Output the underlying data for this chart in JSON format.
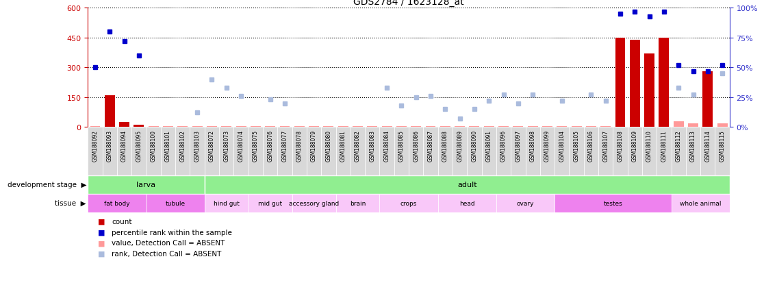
{
  "title": "GDS2784 / 1623128_at",
  "samples": [
    "GSM188092",
    "GSM188093",
    "GSM188094",
    "GSM188095",
    "GSM188100",
    "GSM188101",
    "GSM188102",
    "GSM188103",
    "GSM188072",
    "GSM188073",
    "GSM188074",
    "GSM188075",
    "GSM188076",
    "GSM188077",
    "GSM188078",
    "GSM188079",
    "GSM188080",
    "GSM188081",
    "GSM188082",
    "GSM188083",
    "GSM188084",
    "GSM188085",
    "GSM188086",
    "GSM188087",
    "GSM188088",
    "GSM188089",
    "GSM188090",
    "GSM188091",
    "GSM188096",
    "GSM188097",
    "GSM188098",
    "GSM188099",
    "GSM188104",
    "GSM188105",
    "GSM188106",
    "GSM188107",
    "GSM188108",
    "GSM188109",
    "GSM188110",
    "GSM188111",
    "GSM188112",
    "GSM188113",
    "GSM188114",
    "GSM188115"
  ],
  "count_values": [
    5,
    160,
    25,
    12,
    3,
    3,
    3,
    3,
    3,
    3,
    3,
    3,
    3,
    3,
    3,
    3,
    3,
    3,
    3,
    3,
    3,
    3,
    3,
    3,
    3,
    3,
    3,
    3,
    3,
    5,
    3,
    3,
    3,
    3,
    3,
    3,
    450,
    440,
    370,
    450,
    30,
    20,
    280,
    20
  ],
  "count_present": [
    false,
    true,
    true,
    true,
    false,
    false,
    false,
    false,
    false,
    false,
    false,
    false,
    false,
    false,
    false,
    false,
    false,
    false,
    false,
    false,
    false,
    false,
    false,
    false,
    false,
    false,
    false,
    false,
    false,
    false,
    false,
    false,
    false,
    false,
    false,
    false,
    true,
    true,
    true,
    true,
    false,
    false,
    true,
    false
  ],
  "rank_present_pct": [
    50,
    80,
    72,
    60,
    null,
    null,
    null,
    null,
    null,
    null,
    null,
    null,
    null,
    null,
    null,
    null,
    null,
    null,
    null,
    null,
    null,
    null,
    null,
    null,
    null,
    null,
    null,
    null,
    null,
    null,
    null,
    null,
    null,
    null,
    null,
    null,
    95,
    97,
    93,
    97,
    52,
    47,
    47,
    52
  ],
  "rank_absent_pct": [
    null,
    null,
    null,
    null,
    null,
    null,
    null,
    12,
    40,
    33,
    26,
    null,
    23,
    20,
    null,
    null,
    null,
    null,
    null,
    null,
    33,
    18,
    25,
    26,
    15,
    7,
    15,
    22,
    27,
    20,
    27,
    null,
    22,
    null,
    27,
    22,
    null,
    null,
    null,
    null,
    33,
    27,
    null,
    45
  ],
  "dev_stage_blocks": [
    {
      "label": "larva",
      "start": 0,
      "end": 8,
      "color": "#90ee90"
    },
    {
      "label": "adult",
      "start": 8,
      "end": 44,
      "color": "#90ee90"
    }
  ],
  "tissue_blocks": [
    {
      "label": "fat body",
      "start": 0,
      "end": 4,
      "color": "#ee82ee"
    },
    {
      "label": "tubule",
      "start": 4,
      "end": 8,
      "color": "#ee82ee"
    },
    {
      "label": "hind gut",
      "start": 8,
      "end": 11,
      "color": "#f9c8f9"
    },
    {
      "label": "mid gut",
      "start": 11,
      "end": 14,
      "color": "#f9c8f9"
    },
    {
      "label": "accessory gland",
      "start": 14,
      "end": 17,
      "color": "#f9c8f9"
    },
    {
      "label": "brain",
      "start": 17,
      "end": 20,
      "color": "#f9c8f9"
    },
    {
      "label": "crops",
      "start": 20,
      "end": 24,
      "color": "#f9c8f9"
    },
    {
      "label": "head",
      "start": 24,
      "end": 28,
      "color": "#f9c8f9"
    },
    {
      "label": "ovary",
      "start": 28,
      "end": 32,
      "color": "#f9c8f9"
    },
    {
      "label": "testes",
      "start": 32,
      "end": 40,
      "color": "#ee82ee"
    },
    {
      "label": "whole animal",
      "start": 40,
      "end": 44,
      "color": "#f9c8f9"
    }
  ],
  "ylim_left": [
    0,
    600
  ],
  "ylim_right": [
    0,
    100
  ],
  "yticks_left": [
    0,
    150,
    300,
    450,
    600
  ],
  "yticks_right": [
    0,
    25,
    50,
    75,
    100
  ],
  "bar_color_present": "#cc0000",
  "bar_color_absent": "#ff9999",
  "rank_present_color": "#0000cc",
  "rank_absent_color": "#aabbdd",
  "background_color": "#ffffff",
  "left_axis_color": "#cc0000",
  "right_axis_color": "#3333cc",
  "xticklabel_bg": "#d8d8d8"
}
